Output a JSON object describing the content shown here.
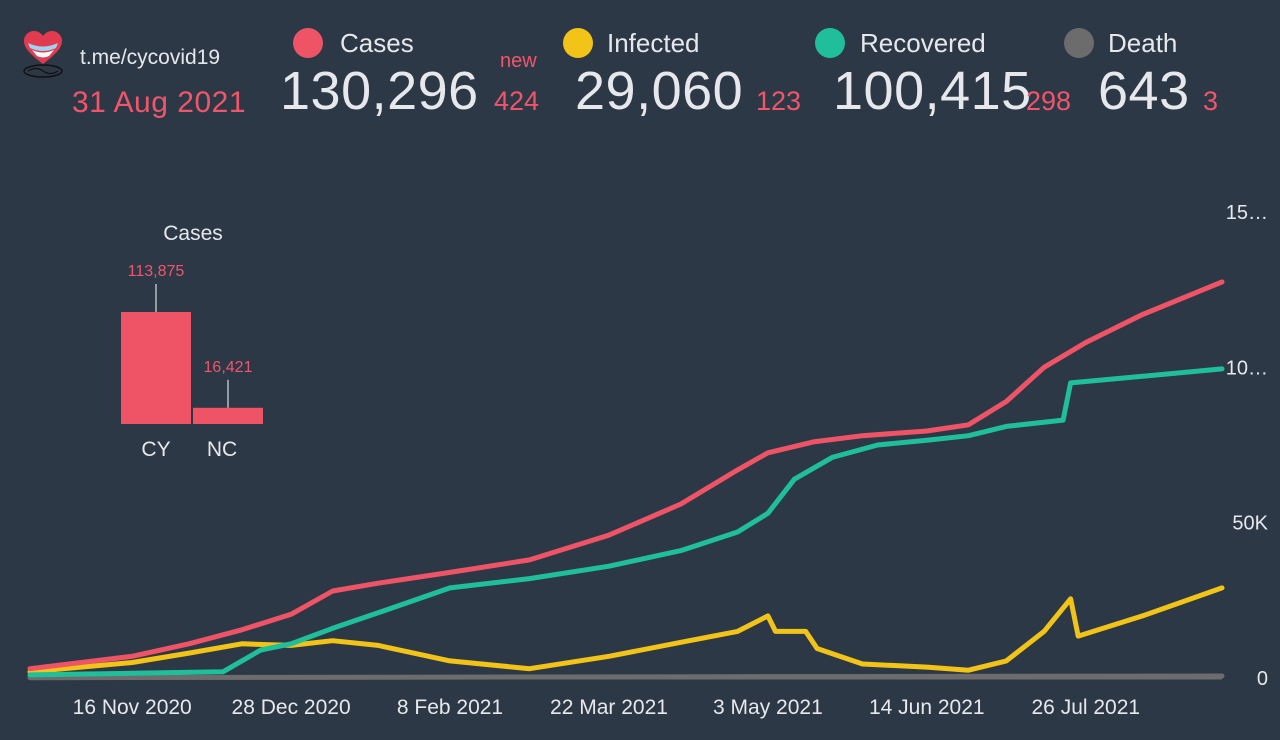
{
  "header": {
    "link": "t.me/cycovid19",
    "date": "31 Aug 2021",
    "new_label": "new"
  },
  "stats": [
    {
      "key": "cases",
      "label": "Cases",
      "color": "#ef5466",
      "total": "130,296",
      "new": "424"
    },
    {
      "key": "infected",
      "label": "Infected",
      "color": "#f2c418",
      "total": "29,060",
      "new": "123"
    },
    {
      "key": "recovered",
      "label": "Recovered",
      "color": "#1fbf9b",
      "total": "100,415",
      "new": "298"
    },
    {
      "key": "death",
      "label": "Death",
      "color": "#6c6c6c",
      "total": "643",
      "new": "3"
    }
  ],
  "chart_data": [
    {
      "type": "bar",
      "title": "Cases",
      "categories": [
        "CY",
        "NC"
      ],
      "values": [
        113875,
        16421
      ],
      "data_labels": [
        "113,875",
        "16,421"
      ],
      "color": "#ef5466"
    },
    {
      "type": "line",
      "x_ticks": [
        "16 Nov 2020",
        "28 Dec 2020",
        "8 Feb 2021",
        "22 Mar 2021",
        "3 May 2021",
        "14 Jun 2021",
        "26 Jul 2021"
      ],
      "y_ticks": [
        "0",
        "50K",
        "10…",
        "15…"
      ],
      "y_tick_values": [
        0,
        50000,
        100000,
        150000
      ],
      "ylim": [
        0,
        150000
      ],
      "xlim": [
        "2020-10-20",
        "2021-08-31"
      ],
      "series": [
        {
          "name": "Cases",
          "color": "#ef5466",
          "points": [
            [
              "2020-10-20",
              3000
            ],
            [
              "2020-11-16",
              7000
            ],
            [
              "2020-12-01",
              11000
            ],
            [
              "2020-12-15",
              15500
            ],
            [
              "2020-12-28",
              20500
            ],
            [
              "2021-01-08",
              28000
            ],
            [
              "2021-01-20",
              30500
            ],
            [
              "2021-02-08",
              34000
            ],
            [
              "2021-03-01",
              38000
            ],
            [
              "2021-03-22",
              46000
            ],
            [
              "2021-04-10",
              56000
            ],
            [
              "2021-04-25",
              67000
            ],
            [
              "2021-05-03",
              72500
            ],
            [
              "2021-05-15",
              76000
            ],
            [
              "2021-05-28",
              78000
            ],
            [
              "2021-06-14",
              79500
            ],
            [
              "2021-06-25",
              81500
            ],
            [
              "2021-07-05",
              89000
            ],
            [
              "2021-07-15",
              100000
            ],
            [
              "2021-07-26",
              108000
            ],
            [
              "2021-08-10",
              117000
            ],
            [
              "2021-08-31",
              127500
            ]
          ]
        },
        {
          "name": "Recovered",
          "color": "#1fbf9b",
          "points": [
            [
              "2020-10-20",
              1000
            ],
            [
              "2020-11-16",
              1500
            ],
            [
              "2020-12-10",
              2000
            ],
            [
              "2020-12-20",
              9000
            ],
            [
              "2020-12-28",
              11000
            ],
            [
              "2021-01-08",
              16000
            ],
            [
              "2021-01-20",
              21000
            ],
            [
              "2021-02-08",
              29000
            ],
            [
              "2021-03-01",
              32000
            ],
            [
              "2021-03-22",
              36000
            ],
            [
              "2021-04-10",
              41000
            ],
            [
              "2021-04-25",
              47000
            ],
            [
              "2021-05-03",
              53000
            ],
            [
              "2021-05-10",
              64000
            ],
            [
              "2021-05-20",
              71000
            ],
            [
              "2021-06-01",
              75000
            ],
            [
              "2021-06-14",
              76500
            ],
            [
              "2021-06-25",
              78000
            ],
            [
              "2021-07-05",
              81000
            ],
            [
              "2021-07-20",
              83000
            ],
            [
              "2021-07-22",
              95000
            ],
            [
              "2021-08-31",
              99500
            ]
          ]
        },
        {
          "name": "Infected",
          "color": "#f2c418",
          "points": [
            [
              "2020-10-20",
              2000
            ],
            [
              "2020-11-16",
              5000
            ],
            [
              "2020-12-01",
              8000
            ],
            [
              "2020-12-15",
              11000
            ],
            [
              "2020-12-28",
              10500
            ],
            [
              "2021-01-08",
              12000
            ],
            [
              "2021-01-20",
              10500
            ],
            [
              "2021-02-08",
              5500
            ],
            [
              "2021-03-01",
              3000
            ],
            [
              "2021-03-22",
              7000
            ],
            [
              "2021-04-10",
              11500
            ],
            [
              "2021-04-25",
              15000
            ],
            [
              "2021-05-03",
              20000
            ],
            [
              "2021-05-05",
              15000
            ],
            [
              "2021-05-13",
              15000
            ],
            [
              "2021-05-16",
              9500
            ],
            [
              "2021-05-28",
              4500
            ],
            [
              "2021-06-14",
              3500
            ],
            [
              "2021-06-25",
              2500
            ],
            [
              "2021-07-05",
              5500
            ],
            [
              "2021-07-15",
              15000
            ],
            [
              "2021-07-22",
              25500
            ],
            [
              "2021-07-24",
              13500
            ],
            [
              "2021-08-10",
              20000
            ],
            [
              "2021-08-31",
              29000
            ]
          ]
        },
        {
          "name": "Death",
          "color": "#6c6c6c",
          "points": [
            [
              "2020-10-20",
              100
            ],
            [
              "2021-08-31",
              643
            ]
          ]
        }
      ]
    }
  ]
}
